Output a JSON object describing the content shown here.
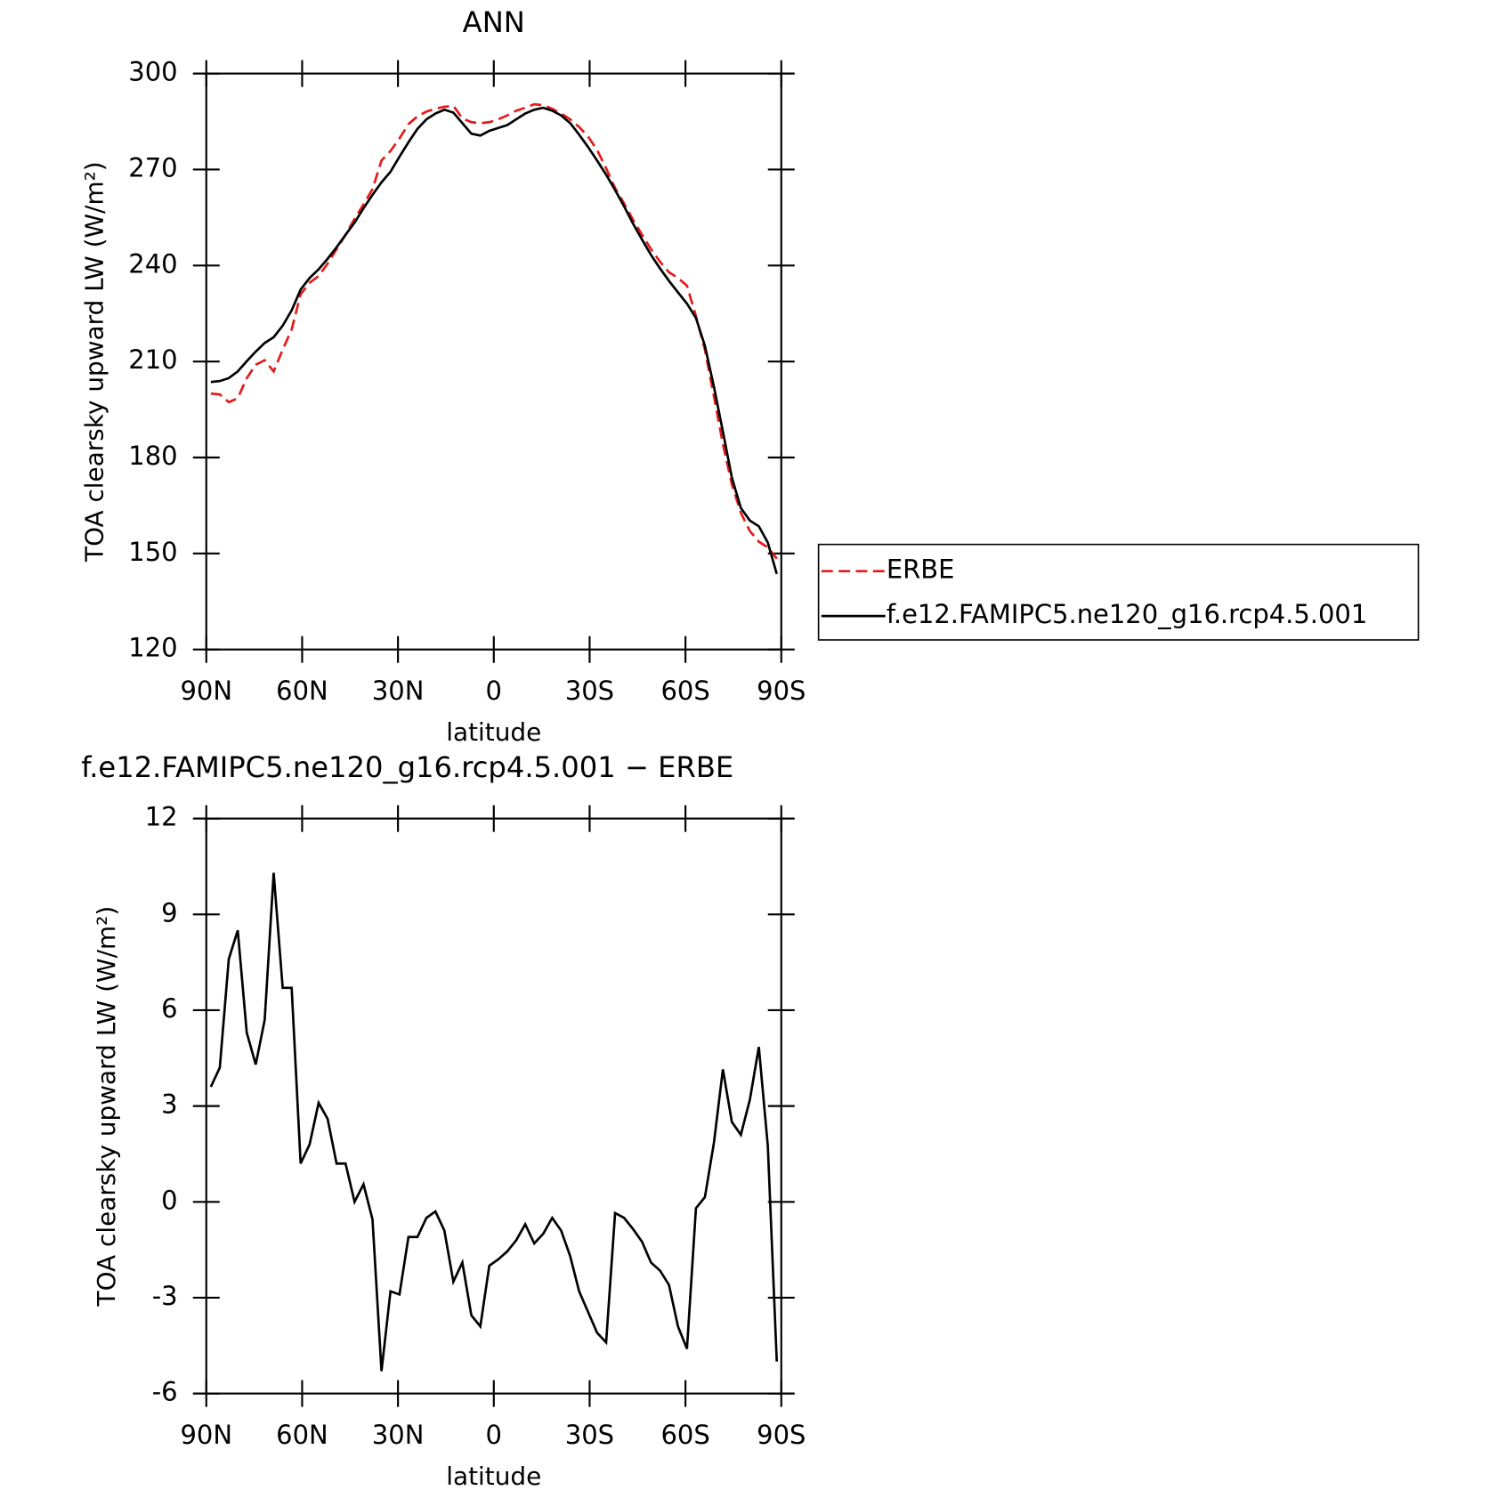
{
  "chart_data": [
    {
      "type": "line",
      "title": "ANN",
      "xlabel": "latitude",
      "ylabel": "TOA clearsky upward LW (W/m²)",
      "x": [
        88.59,
        85.78,
        82.97,
        80.16,
        77.34,
        74.53,
        71.72,
        68.91,
        66.09,
        63.28,
        60.47,
        57.66,
        54.84,
        52.03,
        49.22,
        46.41,
        43.59,
        40.78,
        37.97,
        35.16,
        32.34,
        29.53,
        26.72,
        23.91,
        21.09,
        18.28,
        15.47,
        12.66,
        9.84,
        7.03,
        4.22,
        1.41,
        -1.41,
        -4.22,
        -7.03,
        -9.84,
        -12.66,
        -15.47,
        -18.28,
        -21.09,
        -23.91,
        -26.72,
        -29.53,
        -32.34,
        -35.16,
        -37.97,
        -40.78,
        -43.59,
        -46.41,
        -49.22,
        -52.03,
        -54.84,
        -57.66,
        -60.47,
        -63.28,
        -66.09,
        -68.91,
        -71.72,
        -74.53,
        -77.34,
        -80.16,
        -82.97,
        -85.78,
        -88.59
      ],
      "series": [
        {
          "name": "ERBE",
          "color": "#e41a1c",
          "linestyle": "dashed",
          "values": [
            200.0,
            199.7,
            197.3,
            198.5,
            204.8,
            209.0,
            210.4,
            206.9,
            213.7,
            220.0,
            231.0,
            234.6,
            236.7,
            240.6,
            245.1,
            249.6,
            254.6,
            259.1,
            263.9,
            272.8,
            275.8,
            279.7,
            284.2,
            286.6,
            288.1,
            289.0,
            289.6,
            289.9,
            286.0,
            284.8,
            284.5,
            284.8,
            285.7,
            286.9,
            288.4,
            289.3,
            290.4,
            290.1,
            289.0,
            287.5,
            285.7,
            283.3,
            280.3,
            276.1,
            270.4,
            264.2,
            259.4,
            254.3,
            249.6,
            245.1,
            241.2,
            237.9,
            236.1,
            233.7,
            224.2,
            213.7,
            199.1,
            184.2,
            171.6,
            162.7,
            157.0,
            153.7,
            151.9,
            148.4
          ]
        },
        {
          "name": "f.e12.FAMIPC5.ne120_g16.rcp4.5.001",
          "color": "#000000",
          "linestyle": "solid",
          "values": [
            203.6,
            203.9,
            204.8,
            206.9,
            210.1,
            213.1,
            215.8,
            217.6,
            221.2,
            226.0,
            232.5,
            236.1,
            238.8,
            242.1,
            245.7,
            249.6,
            253.4,
            257.9,
            262.1,
            266.0,
            269.3,
            274.0,
            278.5,
            282.7,
            285.7,
            287.5,
            288.7,
            287.8,
            284.5,
            281.2,
            280.6,
            282.1,
            283.0,
            283.9,
            285.7,
            287.5,
            288.7,
            289.3,
            288.4,
            286.9,
            284.5,
            280.9,
            277.0,
            272.8,
            268.4,
            263.6,
            258.5,
            253.1,
            248.1,
            243.3,
            239.1,
            235.2,
            231.6,
            228.1,
            223.6,
            214.9,
            202.1,
            188.1,
            173.7,
            164.2,
            160.3,
            158.5,
            153.4,
            143.6
          ]
        }
      ],
      "xlim": [
        90,
        -90
      ],
      "xticks": [
        {
          "value": 90,
          "label": "90N"
        },
        {
          "value": 60,
          "label": "60N"
        },
        {
          "value": 30,
          "label": "30N"
        },
        0,
        {
          "value": -30,
          "label": "30S"
        },
        {
          "value": -60,
          "label": "60S"
        },
        {
          "value": -90,
          "label": "90S"
        }
      ],
      "ylim": [
        120,
        300
      ],
      "yticks": [
        120,
        150,
        180,
        210,
        240,
        270,
        300
      ],
      "legend": "right"
    },
    {
      "type": "line",
      "title": "f.e12.FAMIPC5.ne120_g16.rcp4.5.001 − ERBE",
      "xlabel": "latitude",
      "ylabel": "TOA clearsky upward LW (W/m²)",
      "x": [
        88.59,
        85.78,
        82.97,
        80.16,
        77.34,
        74.53,
        71.72,
        68.91,
        66.09,
        63.28,
        60.47,
        57.66,
        54.84,
        52.03,
        49.22,
        46.41,
        43.59,
        40.78,
        37.97,
        35.16,
        32.34,
        29.53,
        26.72,
        23.91,
        21.09,
        18.28,
        15.47,
        12.66,
        9.84,
        7.03,
        4.22,
        1.41,
        -1.41,
        -4.22,
        -7.03,
        -9.84,
        -12.66,
        -15.47,
        -18.28,
        -21.09,
        -23.91,
        -26.72,
        -29.53,
        -32.34,
        -35.16,
        -37.97,
        -40.78,
        -43.59,
        -46.41,
        -49.22,
        -52.03,
        -54.84,
        -57.66,
        -60.47,
        -63.28,
        -66.09,
        -68.91,
        -71.72,
        -74.53,
        -77.34,
        -80.16,
        -82.97,
        -85.78,
        -88.59
      ],
      "color": "#000000",
      "values": [
        3.6,
        4.2,
        7.6,
        8.5,
        5.3,
        4.3,
        5.7,
        10.3,
        6.7,
        6.7,
        1.2,
        1.8,
        3.1,
        2.6,
        1.2,
        1.2,
        0.0,
        0.55,
        -0.55,
        -5.3,
        -2.8,
        -2.9,
        -1.1,
        -1.1,
        -0.5,
        -0.3,
        -0.9,
        -2.5,
        -1.9,
        -3.55,
        -3.9,
        -2.0,
        -1.8,
        -1.55,
        -1.2,
        -0.7,
        -1.3,
        -1.0,
        -0.5,
        -0.9,
        -1.7,
        -2.8,
        -3.45,
        -4.1,
        -4.4,
        -0.35,
        -0.5,
        -0.85,
        -1.25,
        -1.9,
        -2.15,
        -2.6,
        -3.9,
        -4.6,
        -0.2,
        0.15,
        1.85,
        4.15,
        2.5,
        2.1,
        3.2,
        4.85,
        1.75,
        -5.0
      ],
      "xlim": [
        90,
        -90
      ],
      "xticks": [
        {
          "value": 90,
          "label": "90N"
        },
        {
          "value": 60,
          "label": "60N"
        },
        {
          "value": 30,
          "label": "30N"
        },
        0,
        {
          "value": -30,
          "label": "30S"
        },
        {
          "value": -60,
          "label": "60S"
        },
        {
          "value": -90,
          "label": "90S"
        }
      ],
      "ylim": [
        -6,
        12
      ],
      "yticks": [
        -6,
        -3,
        0,
        3,
        6,
        9,
        12
      ]
    }
  ]
}
